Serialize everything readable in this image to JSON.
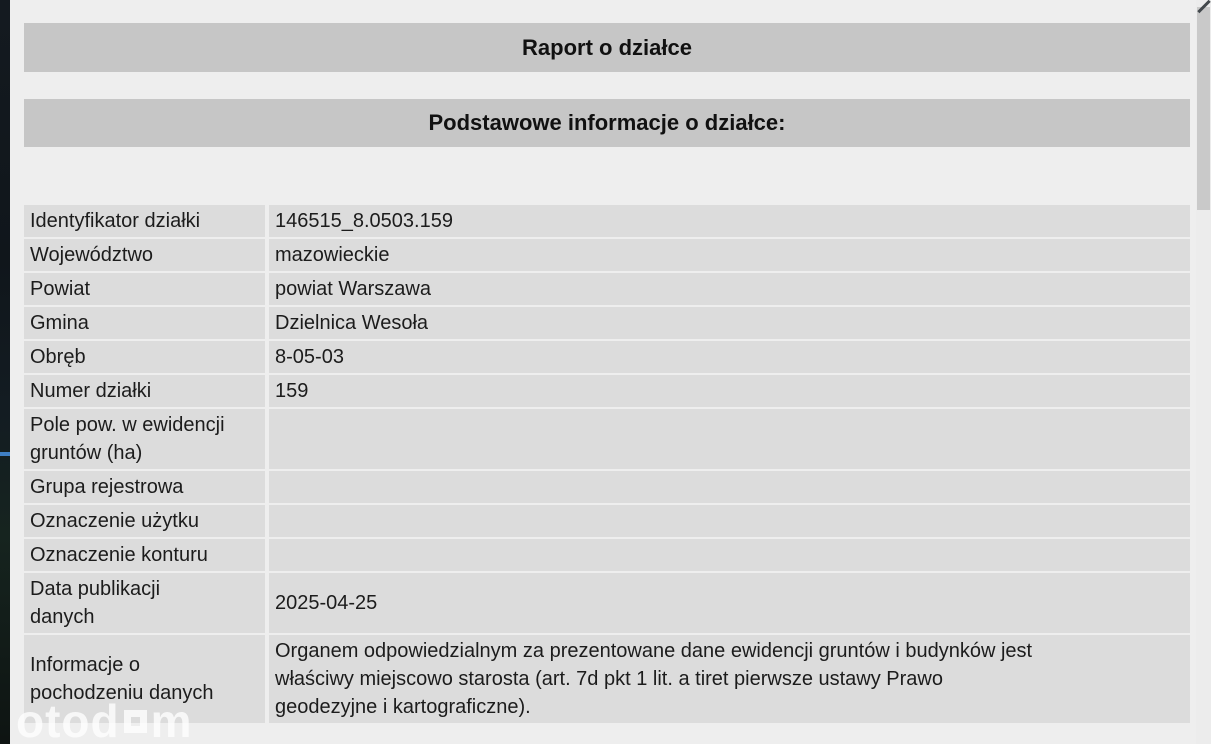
{
  "report": {
    "title": "Raport o działce",
    "section_title": "Podstawowe informacje o działce:"
  },
  "table": {
    "rows": [
      {
        "label": "Identyfikator działki",
        "value": "146515_8.0503.159"
      },
      {
        "label": "Województwo",
        "value": "mazowieckie"
      },
      {
        "label": "Powiat",
        "value": "powiat Warszawa"
      },
      {
        "label": "Gmina",
        "value": "Dzielnica Wesoła"
      },
      {
        "label": "Obręb",
        "value": "8-05-03"
      },
      {
        "label": "Numer działki",
        "value": "159"
      },
      {
        "label": "Pole pow. w ewidencji\ngruntów (ha)",
        "value": ""
      },
      {
        "label": "Grupa rejestrowa",
        "value": ""
      },
      {
        "label": "Oznaczenie użytku",
        "value": ""
      },
      {
        "label": "Oznaczenie konturu",
        "value": ""
      },
      {
        "label": "Data publikacji\ndanych",
        "value": "2025-04-25"
      },
      {
        "label": "Informacje o\npochodzeniu danych",
        "value": "Organem odpowiedzialnym za prezentowane dane ewidencji gruntów i budynków jest\nwłaściwy miejscowo starosta (art. 7d pkt 1 lit. a tiret pierwsze ustawy Prawo\ngeodezyjne i kartograficzne)."
      }
    ]
  },
  "watermark": {
    "brand": "otodom",
    "text_before_square": "otod",
    "text_after_square": "m"
  },
  "colors": {
    "page-bg": "#eeeeee",
    "header-bar": "#c6c6c6",
    "row-cell": "#dcdcdc",
    "edge-dark": "#11171c",
    "accent-blue": "#3f7fc4",
    "scroll-thumb": "#c9c9c9"
  }
}
